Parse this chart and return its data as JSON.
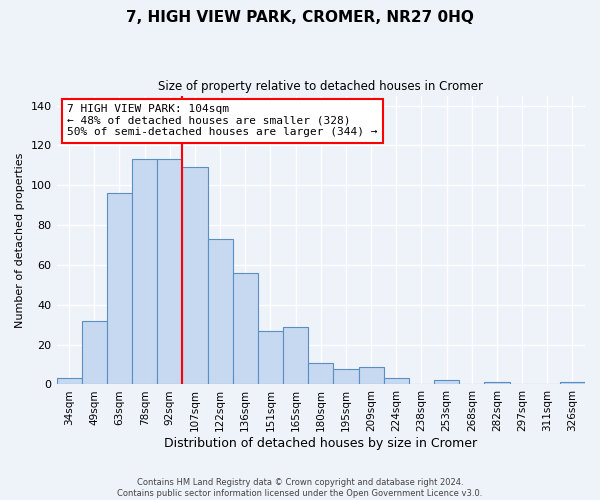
{
  "title": "7, HIGH VIEW PARK, CROMER, NR27 0HQ",
  "subtitle": "Size of property relative to detached houses in Cromer",
  "xlabel": "Distribution of detached houses by size in Cromer",
  "ylabel": "Number of detached properties",
  "bin_labels": [
    "34sqm",
    "49sqm",
    "63sqm",
    "78sqm",
    "92sqm",
    "107sqm",
    "122sqm",
    "136sqm",
    "151sqm",
    "165sqm",
    "180sqm",
    "195sqm",
    "209sqm",
    "224sqm",
    "238sqm",
    "253sqm",
    "268sqm",
    "282sqm",
    "297sqm",
    "311sqm",
    "326sqm"
  ],
  "bar_values": [
    3,
    32,
    96,
    113,
    113,
    109,
    73,
    56,
    27,
    29,
    11,
    8,
    9,
    3,
    0,
    2,
    0,
    1,
    0,
    0,
    1
  ],
  "bar_color": "#c7d9f0",
  "bar_edge_color": "#5a8fc3",
  "vline_x_index": 5,
  "vline_color": "red",
  "annotation_text": "7 HIGH VIEW PARK: 104sqm\n← 48% of detached houses are smaller (328)\n50% of semi-detached houses are larger (344) →",
  "annotation_box_color": "white",
  "annotation_box_edge_color": "red",
  "ylim": [
    0,
    145
  ],
  "footer_line1": "Contains HM Land Registry data © Crown copyright and database right 2024.",
  "footer_line2": "Contains public sector information licensed under the Open Government Licence v3.0.",
  "background_color": "#eef2f9",
  "grid_color": "white"
}
